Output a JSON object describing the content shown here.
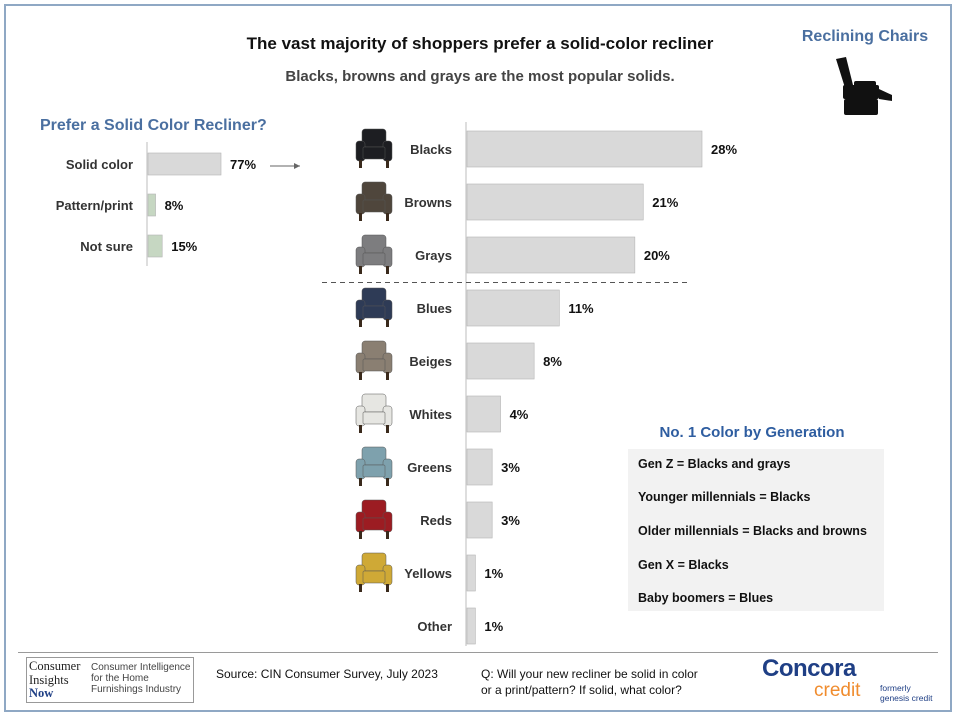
{
  "header": {
    "title": "The vast majority of shoppers prefer a solid-color recliner",
    "subtitle": "Blacks, browns and grays are the most popular solids.",
    "corner_title": "Reclining Chairs",
    "corner_icon": "recliner-chair-icon"
  },
  "chart_data": [
    {
      "type": "bar",
      "orientation": "horizontal",
      "title": "Prefer a Solid Color Recliner?",
      "categories": [
        "Solid color",
        "Pattern/print",
        "Not sure"
      ],
      "values": [
        77,
        8,
        15
      ],
      "value_labels": [
        "77%",
        "8%",
        "15%"
      ],
      "colors": [
        "#d9d9d9",
        "#c6d7c2",
        "#c6d7c2"
      ],
      "xlim": [
        0,
        100
      ]
    },
    {
      "type": "bar",
      "orientation": "horizontal",
      "categories": [
        "Blacks",
        "Browns",
        "Grays",
        "Blues",
        "Beiges",
        "Whites",
        "Greens",
        "Reds",
        "Yellows",
        "Other"
      ],
      "values": [
        28,
        21,
        20,
        11,
        8,
        4,
        3,
        3,
        1,
        1
      ],
      "value_labels": [
        "28%",
        "21%",
        "20%",
        "11%",
        "8%",
        "4%",
        "3%",
        "3%",
        "1%",
        "1%"
      ],
      "chair_colors": [
        "#1d1e22",
        "#4f463c",
        "#7d7d7f",
        "#2e3b56",
        "#8a7f72",
        "#e6e6e2",
        "#7ea1ad",
        "#9c1c22",
        "#cfa936",
        null
      ],
      "bar_color": "#d9d9d9",
      "divider_after": "Grays",
      "xlim": [
        0,
        28
      ]
    }
  ],
  "generation": {
    "title": "No. 1 Color by Generation",
    "lines": [
      "Gen Z = Blacks and grays",
      "Younger millennials = Blacks",
      "Older millennials = Blacks and browns",
      "Gen X = Blacks",
      "Baby boomers = Blues"
    ]
  },
  "footer": {
    "cin_logo": [
      "Consumer",
      "Insights",
      "Now"
    ],
    "cin_tagline": "Consumer Intelligence for the Home Furnishings Industry",
    "source": "Source:  CIN Consumer Survey, July 2023",
    "question_line1": "Q:  Will your new recliner be solid in color",
    "question_line2": "or a print/pattern? If solid, what color?",
    "concora": "Concora",
    "credit": "credit",
    "formerly": [
      "formerly",
      "genesis credit"
    ]
  }
}
